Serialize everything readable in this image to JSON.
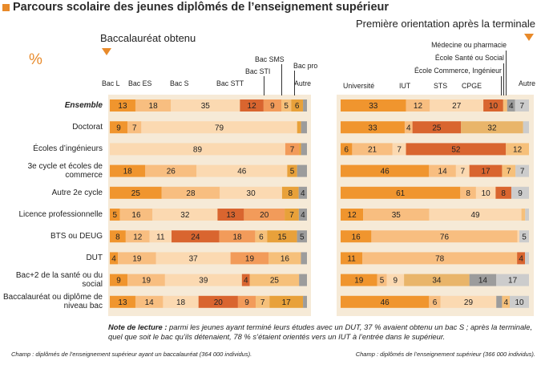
{
  "title": "Parcours scolaire des jeunes diplômés de l’enseignement supérieur",
  "left_subtitle": "Baccalauréat obtenu",
  "right_subtitle": "Première orientation après la terminale",
  "unit_label": "%",
  "note_label": "Note de lecture :",
  "note_text": " parmi les jeunes ayant terminé leurs études avec un DUT, 37 % avaient obtenu un bac S ; après la terminale, quel que soit le bac qu’ils détenaient, 78 % s’étaient orientés vers un IUT à l’entrée dans le supérieur.",
  "left_champ": "Champ : diplômés de l’enseignement supérieur ayant un baccalauréat (364 000 individus).",
  "right_champ": "Champ : diplômés de l’enseignement supérieur (366 000 individus).",
  "colors": {
    "accent": "#e88a2a",
    "panel": "#f6ead7",
    "left": [
      "#f0952e",
      "#f8be80",
      "#fbd9b1",
      "#d9652f",
      "#f29b5a",
      "#f6c07a",
      "#e8a13a",
      "#9c9c9c"
    ],
    "right": [
      "#f0952e",
      "#f8be80",
      "#fbd9b1",
      "#d9652f",
      "#f6c07a",
      "#e9b56a",
      "#9c9c9c"
    ]
  },
  "chart_data": [
    {
      "type": "bar",
      "stacked": true,
      "orientation": "horizontal",
      "title": "Baccalauréat obtenu",
      "series_names": [
        "Bac L",
        "Bac ES",
        "Bac S",
        "Bac STT",
        "Bac STI",
        "Bac SMS",
        "Bac pro",
        "Autre"
      ],
      "categories": [
        "Ensemble",
        "Doctorat",
        "Écoles d’ingénieurs",
        "3e cycle et écoles de commerce",
        "Autre 2e cycle",
        "Licence professionnelle",
        "BTS ou DEUG",
        "DUT",
        "Bac+2 de la santé ou du social",
        "Baccalauréat ou diplôme de niveau bac"
      ],
      "values": [
        [
          13,
          18,
          35,
          12,
          9,
          5,
          6,
          2
        ],
        [
          9,
          7,
          79,
          0,
          0,
          0,
          2,
          3
        ],
        [
          0,
          0,
          89,
          0,
          7,
          0,
          1,
          3
        ],
        [
          18,
          26,
          46,
          0,
          0,
          0,
          5,
          5
        ],
        [
          25,
          28,
          30,
          0,
          0,
          0,
          8,
          4
        ],
        [
          5,
          16,
          32,
          13,
          20,
          0,
          7,
          4
        ],
        [
          8,
          12,
          11,
          24,
          18,
          6,
          15,
          5
        ],
        [
          4,
          19,
          37,
          0,
          19,
          16,
          0,
          3
        ],
        [
          9,
          19,
          39,
          4,
          0,
          25,
          0,
          4
        ],
        [
          13,
          14,
          18,
          20,
          9,
          7,
          17,
          2
        ]
      ],
      "labels": [
        [
          "13",
          "18",
          "35",
          "12",
          "9",
          "5",
          "6",
          ""
        ],
        [
          "9",
          "7",
          "79",
          "",
          "",
          "",
          "",
          ""
        ],
        [
          "",
          "",
          "89",
          "",
          "7",
          "",
          "",
          ""
        ],
        [
          "18",
          "26",
          "46",
          "",
          "",
          "",
          "5",
          ""
        ],
        [
          "25",
          "28",
          "30",
          "",
          "",
          "",
          "8",
          "4"
        ],
        [
          "5",
          "16",
          "32",
          "13",
          "20",
          "",
          "7",
          "4"
        ],
        [
          "8",
          "12",
          "11",
          "24",
          "18",
          "6",
          "15",
          "5"
        ],
        [
          "4",
          "19",
          "37",
          "",
          "19",
          "16",
          "",
          ""
        ],
        [
          "9",
          "19",
          "39",
          "4",
          "",
          "25",
          "",
          ""
        ],
        [
          "13",
          "14",
          "18",
          "20",
          "9",
          "7",
          "17",
          ""
        ]
      ]
    },
    {
      "type": "bar",
      "stacked": true,
      "orientation": "horizontal",
      "title": "Première orientation après la terminale",
      "series_names": [
        "Université",
        "IUT",
        "STS",
        "CPGE",
        "École Commerce, Ingénieur",
        "École Santé ou Social",
        "Médecine ou pharmacie",
        "Autre"
      ],
      "categories": [
        "Ensemble",
        "Doctorat",
        "Écoles d’ingénieurs",
        "3e cycle et écoles de commerce",
        "Autre 2e cycle",
        "Licence professionnelle",
        "BTS ou DEUG",
        "DUT",
        "Bac+2 de la santé ou du social",
        "Baccalauréat ou diplôme de niveau bac"
      ],
      "segment_series": [
        [
          0,
          1,
          2,
          3,
          4,
          6,
          7
        ],
        [
          0,
          1,
          3,
          5,
          7
        ],
        [
          0,
          1,
          2,
          3,
          4
        ],
        [
          0,
          1,
          2,
          3,
          4,
          7
        ],
        [
          0,
          1,
          2,
          3,
          7
        ],
        [
          0,
          1,
          2,
          4,
          7
        ],
        [
          0,
          1,
          2,
          7
        ],
        [
          0,
          1,
          3,
          7
        ],
        [
          0,
          1,
          2,
          5,
          6,
          7
        ],
        [
          0,
          1,
          2,
          6,
          4,
          7
        ]
      ],
      "values": [
        [
          33,
          12,
          27,
          10,
          2,
          4,
          7
        ],
        [
          33,
          4,
          25,
          32,
          3
        ],
        [
          6,
          21,
          7,
          52,
          12
        ],
        [
          46,
          14,
          7,
          17,
          7,
          7
        ],
        [
          61,
          8,
          10,
          8,
          9
        ],
        [
          12,
          35,
          49,
          2,
          2
        ],
        [
          16,
          76,
          1,
          5
        ],
        [
          11,
          78,
          4,
          2
        ],
        [
          19,
          5,
          9,
          34,
          14,
          17
        ],
        [
          46,
          6,
          29,
          3,
          4,
          10
        ]
      ],
      "labels": [
        [
          "33",
          "12",
          "27",
          "10",
          "",
          "4",
          "7"
        ],
        [
          "33",
          "4",
          "25",
          "32",
          ""
        ],
        [
          "6",
          "21",
          "7",
          "52",
          "12"
        ],
        [
          "46",
          "14",
          "7",
          "17",
          "7",
          "7"
        ],
        [
          "61",
          "8",
          "10",
          "8",
          "9"
        ],
        [
          "12",
          "35",
          "49",
          "",
          ""
        ],
        [
          "16",
          "76",
          "",
          "5"
        ],
        [
          "11",
          "78",
          "4",
          ""
        ],
        [
          "19",
          "5",
          "9",
          "34",
          "14",
          "17"
        ],
        [
          "46",
          "6",
          "29",
          "",
          "4",
          "10"
        ]
      ]
    }
  ]
}
